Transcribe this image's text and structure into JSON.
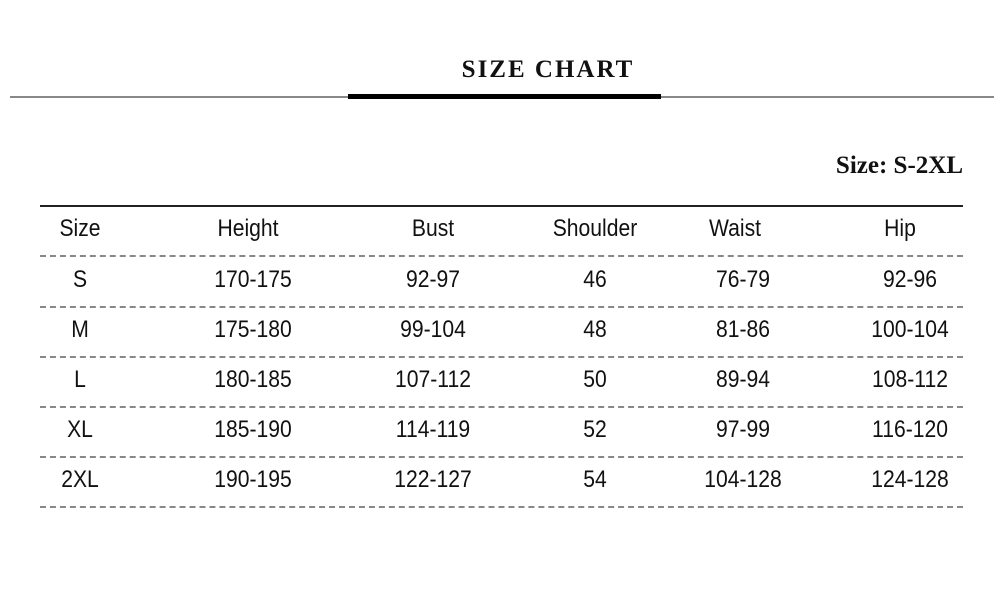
{
  "title": "SIZE CHART",
  "size_range": "Size: S-2XL",
  "table": {
    "headers": [
      "Size",
      "Height",
      "Bust",
      "Shoulder",
      "Waist",
      "Hip"
    ],
    "rows": [
      [
        "S",
        "170-175",
        "92-97",
        "46",
        "76-79",
        "92-96"
      ],
      [
        "M",
        "175-180",
        "99-104",
        "48",
        "81-86",
        "100-104"
      ],
      [
        "L",
        "180-185",
        "107-112",
        "50",
        "89-94",
        "108-112"
      ],
      [
        "XL",
        "185-190",
        "114-119",
        "52",
        "97-99",
        "116-120"
      ],
      [
        "2XL",
        "190-195",
        "122-127",
        "54",
        "104-128",
        "124-128"
      ]
    ]
  }
}
